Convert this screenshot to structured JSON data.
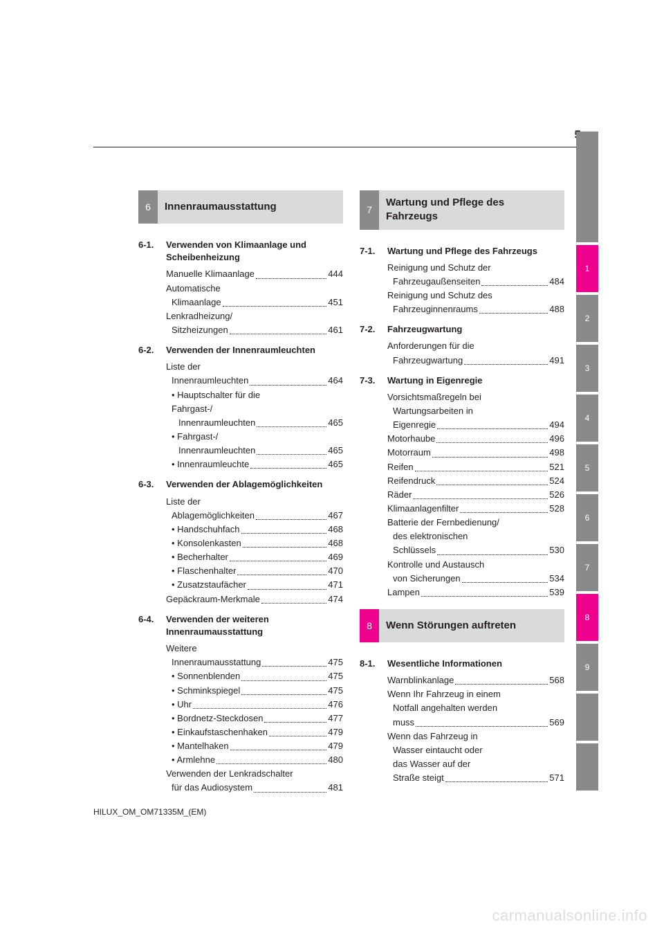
{
  "page_number": "5",
  "footer_code": "HILUX_OM_OM71335M_(EM)",
  "watermark": "carmanualsonline.info",
  "side_tabs": [
    {
      "label": "",
      "type": "blank"
    },
    {
      "label": "1",
      "type": "magenta"
    },
    {
      "label": "2",
      "type": "gray"
    },
    {
      "label": "3",
      "type": "gray"
    },
    {
      "label": "4",
      "type": "gray"
    },
    {
      "label": "5",
      "type": "gray"
    },
    {
      "label": "6",
      "type": "gray"
    },
    {
      "label": "7",
      "type": "gray"
    },
    {
      "label": "8",
      "type": "magenta"
    },
    {
      "label": "9",
      "type": "gray"
    },
    {
      "label": "",
      "type": "short-blank"
    },
    {
      "label": "",
      "type": "short-blank"
    }
  ],
  "left": {
    "section_num": "6",
    "section_title": "Innenraumausstattung",
    "subsections": [
      {
        "num": "6-1.",
        "title": "Verwenden von Klimaanlage und Scheibenheizung",
        "entries": [
          {
            "label": "Manuelle Klimaanlage",
            "page": "444"
          },
          {
            "lines": [
              "Automatische"
            ],
            "label": "Klimaanlage",
            "page": "451",
            "indent": "sub"
          },
          {
            "lines": [
              "Lenkradheizung/"
            ],
            "label": "Sitzheizungen",
            "page": "461",
            "indent": "sub"
          }
        ]
      },
      {
        "num": "6-2.",
        "title": "Verwenden der Innenraumleuchten",
        "entries": [
          {
            "lines": [
              "Liste der"
            ],
            "label": "Innenraumleuchten",
            "page": "464",
            "indent": "sub"
          },
          {
            "lines": [
              "• Hauptschalter für die",
              "Fahrgast-/"
            ],
            "label": "Innenraumleuchten",
            "page": "465",
            "indent": "sub2",
            "line_indent": "sub"
          },
          {
            "lines": [
              "• Fahrgast-/"
            ],
            "label": "Innenraumleuchten",
            "page": "465",
            "indent": "sub2",
            "line_indent": "sub"
          },
          {
            "label": "• Innenraumleuchte",
            "page": "465",
            "indent": "sub"
          }
        ]
      },
      {
        "num": "6-3.",
        "title": "Verwenden der Ablagemöglichkeiten",
        "entries": [
          {
            "lines": [
              "Liste der"
            ],
            "label": "Ablagemöglichkeiten",
            "page": "467",
            "indent": "sub"
          },
          {
            "label": "• Handschuhfach",
            "page": "468",
            "indent": "sub"
          },
          {
            "label": "• Konsolenkasten",
            "page": "468",
            "indent": "sub"
          },
          {
            "label": "• Becherhalter",
            "page": "469",
            "indent": "sub"
          },
          {
            "label": "• Flaschenhalter",
            "page": "470",
            "indent": "sub"
          },
          {
            "label": "• Zusatzstaufächer",
            "page": "471",
            "indent": "sub"
          },
          {
            "label": "Gepäckraum-Merkmale",
            "page": "474"
          }
        ]
      },
      {
        "num": "6-4.",
        "title": "Verwenden der weiteren Innenraumausstattung",
        "entries": [
          {
            "lines": [
              "Weitere"
            ],
            "label": "Innenraumausstattung",
            "page": "475",
            "indent": "sub"
          },
          {
            "label": "• Sonnenblenden",
            "page": "475",
            "indent": "sub"
          },
          {
            "label": "• Schminkspiegel",
            "page": "475",
            "indent": "sub"
          },
          {
            "label": "• Uhr",
            "page": "476",
            "indent": "sub"
          },
          {
            "label": "• Bordnetz-Steckdosen",
            "page": "477",
            "indent": "sub"
          },
          {
            "label": "• Einkaufstaschenhaken",
            "page": "479",
            "indent": "sub"
          },
          {
            "label": "• Mantelhaken",
            "page": "479",
            "indent": "sub"
          },
          {
            "label": "• Armlehne",
            "page": "480",
            "indent": "sub"
          },
          {
            "lines": [
              "Verwenden der Lenkradschalter"
            ],
            "label": "für das Audiosystem",
            "page": "481",
            "indent": "sub"
          }
        ]
      }
    ]
  },
  "right": {
    "sections": [
      {
        "num": "7",
        "title": "Wartung und Pflege des Fahrzeugs",
        "num_color": "gray",
        "subsections": [
          {
            "num": "7-1.",
            "title": "Wartung und Pflege des Fahrzeugs",
            "entries": [
              {
                "lines": [
                  "Reinigung und Schutz der"
                ],
                "label": "Fahrzeugaußenseiten",
                "page": "484",
                "indent": "sub"
              },
              {
                "lines": [
                  "Reinigung und Schutz des"
                ],
                "label": "Fahrzeuginnenraums",
                "page": "488",
                "indent": "sub"
              }
            ]
          },
          {
            "num": "7-2.",
            "title": "Fahrzeugwartung",
            "entries": [
              {
                "lines": [
                  "Anforderungen für die"
                ],
                "label": "Fahrzeugwartung",
                "page": "491",
                "indent": "sub"
              }
            ]
          },
          {
            "num": "7-3.",
            "title": "Wartung in Eigenregie",
            "entries": [
              {
                "lines": [
                  "Vorsichtsmaßregeln bei",
                  "Wartungsarbeiten in"
                ],
                "label": "Eigenregie",
                "page": "494",
                "indent": "sub",
                "line_indent": "sub_first"
              },
              {
                "label": "Motorhaube",
                "page": "496"
              },
              {
                "label": "Motorraum",
                "page": "498"
              },
              {
                "label": "Reifen",
                "page": "521"
              },
              {
                "label": "Reifendruck",
                "page": "524"
              },
              {
                "label": "Räder",
                "page": "526"
              },
              {
                "label": "Klimaanlagenfilter",
                "page": "528"
              },
              {
                "lines": [
                  "Batterie der Fernbedienung/",
                  "des elektronischen"
                ],
                "label": "Schlüssels",
                "page": "530",
                "indent": "sub",
                "line_indent": "sub_first"
              },
              {
                "lines": [
                  "Kontrolle und Austausch"
                ],
                "label": "von Sicherungen",
                "page": "534",
                "indent": "sub"
              },
              {
                "label": "Lampen",
                "page": "539"
              }
            ]
          }
        ]
      },
      {
        "num": "8",
        "title": "Wenn Störungen auftreten",
        "num_color": "magenta",
        "subsections": [
          {
            "num": "8-1.",
            "title": "Wesentliche Informationen",
            "entries": [
              {
                "label": "Warnblinkanlage",
                "page": "568"
              },
              {
                "lines": [
                  "Wenn Ihr Fahrzeug in einem",
                  "Notfall angehalten werden"
                ],
                "label": "muss",
                "page": "569",
                "indent": "sub",
                "line_indent": "sub_first"
              },
              {
                "lines": [
                  "Wenn das Fahrzeug in",
                  "Wasser eintaucht oder",
                  "das Wasser auf der"
                ],
                "label": "Straße steigt",
                "page": "571",
                "indent": "sub",
                "line_indent": "sub_first"
              }
            ]
          }
        ]
      }
    ]
  }
}
